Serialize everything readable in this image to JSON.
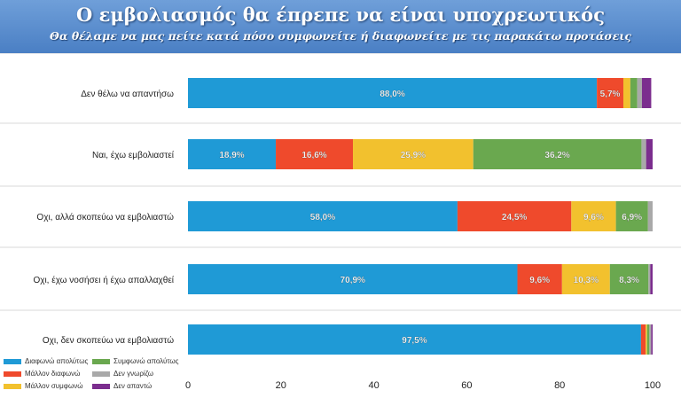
{
  "header": {
    "title": "Ο εμβολιασμός θα έπρεπε να είναι υποχρεωτικός",
    "subtitle": "Θα θέλαμε να μας πείτε κατά πόσο συμφωνείτε ή διαφωνείτε με τις παρακάτω προτάσεις"
  },
  "chart_data": {
    "type": "bar",
    "orientation": "horizontal",
    "stacked": true,
    "title": "Ο εμβολιασμός θα έπρεπε να είναι υποχρεωτικός",
    "subtitle": "Θα θέλαμε να μας πείτε κατά πόσο συμφωνείτε ή διαφωνείτε με τις παρακάτω προτάσεις",
    "categories": [
      "Δεν θέλω να απαντήσω",
      "Ναι, έχω εμβολιαστεί",
      "Οχι, αλλά σκοπεύω να εμβολιαστώ",
      "Οχι, έχω νοσήσει ή έχω απαλλαχθεί",
      "Οχι, δεν σκοπεύω να εμβολιαστώ"
    ],
    "series": [
      {
        "name": "Διαφωνώ απολύτως",
        "color": "#1f9ad6",
        "values": [
          88.0,
          18.9,
          58.0,
          70.9,
          97.5
        ],
        "labels": [
          "88,0%",
          "18,9%",
          "58,0%",
          "70,9%",
          "97,5%"
        ]
      },
      {
        "name": "Μάλλον διαφωνώ",
        "color": "#ef4a2c",
        "values": [
          5.7,
          16.6,
          24.5,
          9.6,
          1.0
        ],
        "labels": [
          "5,7%",
          "16,6%",
          "24,5%",
          "9,6%",
          ""
        ]
      },
      {
        "name": "Μάλλον συμφωνώ",
        "color": "#f2c12e",
        "values": [
          1.5,
          25.9,
          9.6,
          10.3,
          0.3
        ],
        "labels": [
          "",
          "25,9%",
          "9,6%",
          "10,3%",
          ""
        ]
      },
      {
        "name": "Συμφωνώ απολύτως",
        "color": "#6aa84f",
        "values": [
          1.5,
          36.2,
          6.9,
          8.3,
          0.5
        ],
        "labels": [
          "",
          "36,2%",
          "6,9%",
          "8,3%",
          ""
        ]
      },
      {
        "name": "Δεν γνωρίζω",
        "color": "#a9a9a9",
        "values": [
          1.0,
          1.0,
          1.0,
          0.4,
          0.4
        ],
        "labels": [
          "",
          "",
          "",
          "",
          ""
        ]
      },
      {
        "name": "Δεν απαντώ",
        "color": "#7b2d8e",
        "values": [
          2.0,
          1.4,
          0.0,
          0.5,
          0.3
        ],
        "labels": [
          "",
          "",
          "",
          "",
          ""
        ]
      }
    ],
    "xlim": [
      0,
      100
    ],
    "xticks": [
      0,
      20,
      40,
      60,
      80,
      100
    ],
    "grid": false,
    "legend_position": "bottom-left"
  }
}
